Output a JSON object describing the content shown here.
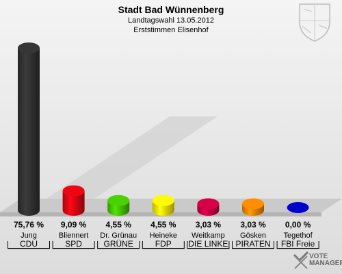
{
  "header": {
    "title": "Stadt Bad Wünnenberg",
    "subtitle": "Landtagswahl 13.05.2012",
    "subtitle2": "Erststimmen Elisenhof"
  },
  "chart_data": {
    "type": "bar",
    "title": "Stadt Bad Wünnenberg",
    "subtitle": "Landtagswahl 13.05.2012 — Erststimmen Elisenhof",
    "categories": [
      "CDU",
      "SPD",
      "GRÜNE",
      "FDP",
      "DIE LINKE",
      "PIRATEN",
      "FBI Freie"
    ],
    "candidates": [
      "Jung",
      "Bliennert",
      "Dr. Grünau",
      "Heineke",
      "Weitkamp",
      "Gösken",
      "Tegethof"
    ],
    "values": [
      75.76,
      9.09,
      4.55,
      4.55,
      3.03,
      3.03,
      0.0
    ],
    "value_labels": [
      "75,76 %",
      "9,09 %",
      "4,55 %",
      "4,55 %",
      "3,03 %",
      "3,03 %",
      "0,00 %"
    ],
    "colors": [
      "#333333",
      "#e30613",
      "#46c800",
      "#ffee00",
      "#cc0044",
      "#ff8800",
      "#0000cc"
    ],
    "ylim": [
      0,
      80
    ],
    "grid": false,
    "legend": "none"
  },
  "branding": {
    "logo_line1": "VOTE",
    "logo_line2": "MANAGER"
  }
}
